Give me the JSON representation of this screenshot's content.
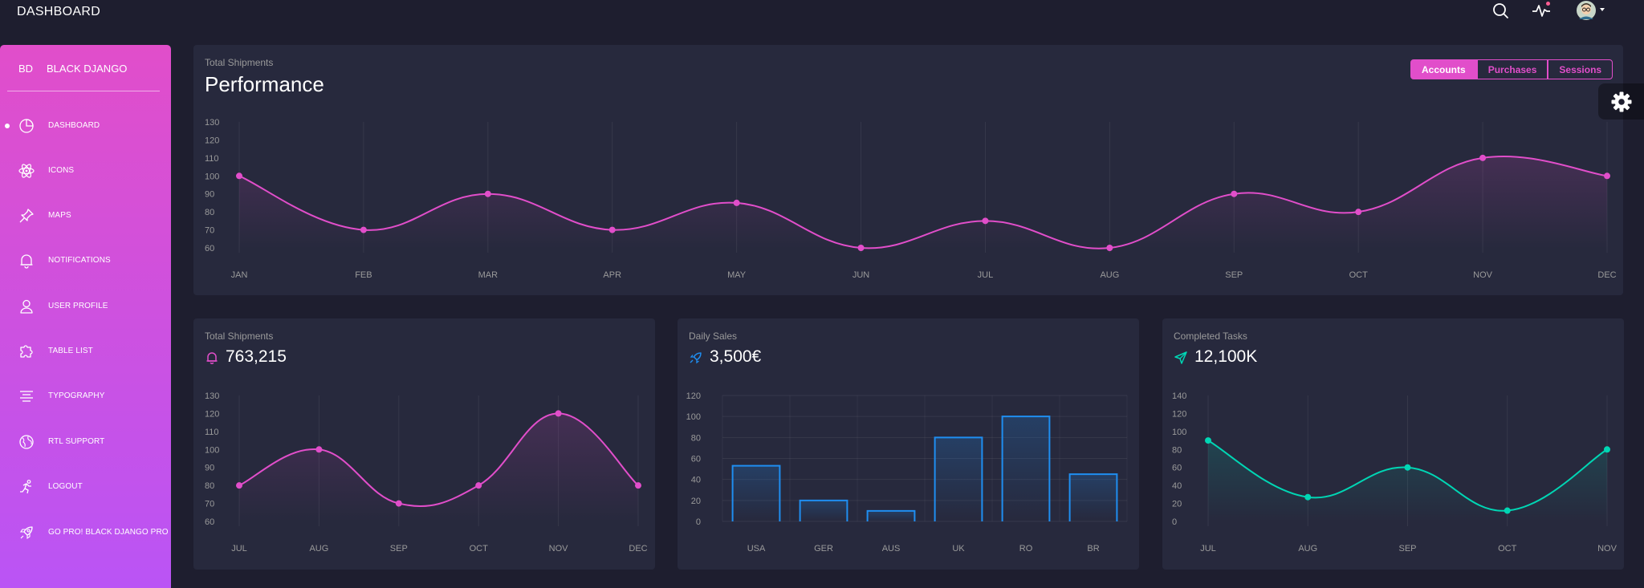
{
  "header": {
    "title": "DASHBOARD"
  },
  "sidebar": {
    "logo_mini": "BD",
    "logo_text": "BLACK DJANGO",
    "items": [
      {
        "label": "DASHBOARD",
        "icon": "chart-pie-icon",
        "active": true
      },
      {
        "label": "ICONS",
        "icon": "atom-icon"
      },
      {
        "label": "MAPS",
        "icon": "pin-icon"
      },
      {
        "label": "NOTIFICATIONS",
        "icon": "bell-icon"
      },
      {
        "label": "USER PROFILE",
        "icon": "user-icon"
      },
      {
        "label": "TABLE LIST",
        "icon": "puzzle-icon"
      },
      {
        "label": "TYPOGRAPHY",
        "icon": "align-center-icon"
      },
      {
        "label": "RTL SUPPORT",
        "icon": "world-icon"
      },
      {
        "label": "LOGOUT",
        "icon": "running-icon"
      },
      {
        "label": "GO PRO! BLACK DJANGO PRO",
        "icon": "rocket-icon"
      }
    ]
  },
  "performance": {
    "category": "Total Shipments",
    "title": "Performance",
    "tabs": [
      "Accounts",
      "Purchases",
      "Sessions"
    ],
    "active_tab": "Accounts"
  },
  "cards": {
    "shipments": {
      "category": "Total Shipments",
      "value": "763,215"
    },
    "sales": {
      "category": "Daily Sales",
      "value": "3,500€"
    },
    "tasks": {
      "category": "Completed Tasks",
      "value": "12,100K"
    }
  },
  "colors": {
    "primary": "#e14eca",
    "info": "#1f8ef1",
    "success": "#00d6b4",
    "card": "#27293d",
    "background": "#1e1e2f"
  },
  "chart_data": [
    {
      "type": "line",
      "categories": [
        "JAN",
        "FEB",
        "MAR",
        "APR",
        "MAY",
        "JUN",
        "JUL",
        "AUG",
        "SEP",
        "OCT",
        "NOV",
        "DEC"
      ],
      "values": [
        100,
        70,
        90,
        70,
        85,
        60,
        75,
        60,
        90,
        80,
        110,
        100
      ],
      "ylim": [
        60,
        130
      ],
      "yticks": [
        60,
        70,
        80,
        90,
        100,
        110,
        120,
        130
      ],
      "grid": true
    },
    {
      "type": "line",
      "categories": [
        "JUL",
        "AUG",
        "SEP",
        "OCT",
        "NOV",
        "DEC"
      ],
      "values": [
        80,
        100,
        70,
        80,
        120,
        80
      ],
      "ylim": [
        60,
        130
      ],
      "yticks": [
        60,
        70,
        80,
        90,
        100,
        110,
        120,
        130
      ],
      "grid": true
    },
    {
      "type": "bar",
      "categories": [
        "USA",
        "GER",
        "AUS",
        "UK",
        "RO",
        "BR"
      ],
      "values": [
        53,
        20,
        10,
        80,
        100,
        45
      ],
      "ylim": [
        0,
        120
      ],
      "yticks": [
        0,
        20,
        40,
        60,
        80,
        100,
        120
      ],
      "grid": true
    },
    {
      "type": "line",
      "categories": [
        "JUL",
        "AUG",
        "SEP",
        "OCT",
        "NOV"
      ],
      "values": [
        90,
        27,
        60,
        12,
        80
      ],
      "ylim": [
        0,
        140
      ],
      "yticks": [
        0,
        20,
        40,
        60,
        80,
        100,
        120,
        140
      ],
      "grid": true
    }
  ]
}
